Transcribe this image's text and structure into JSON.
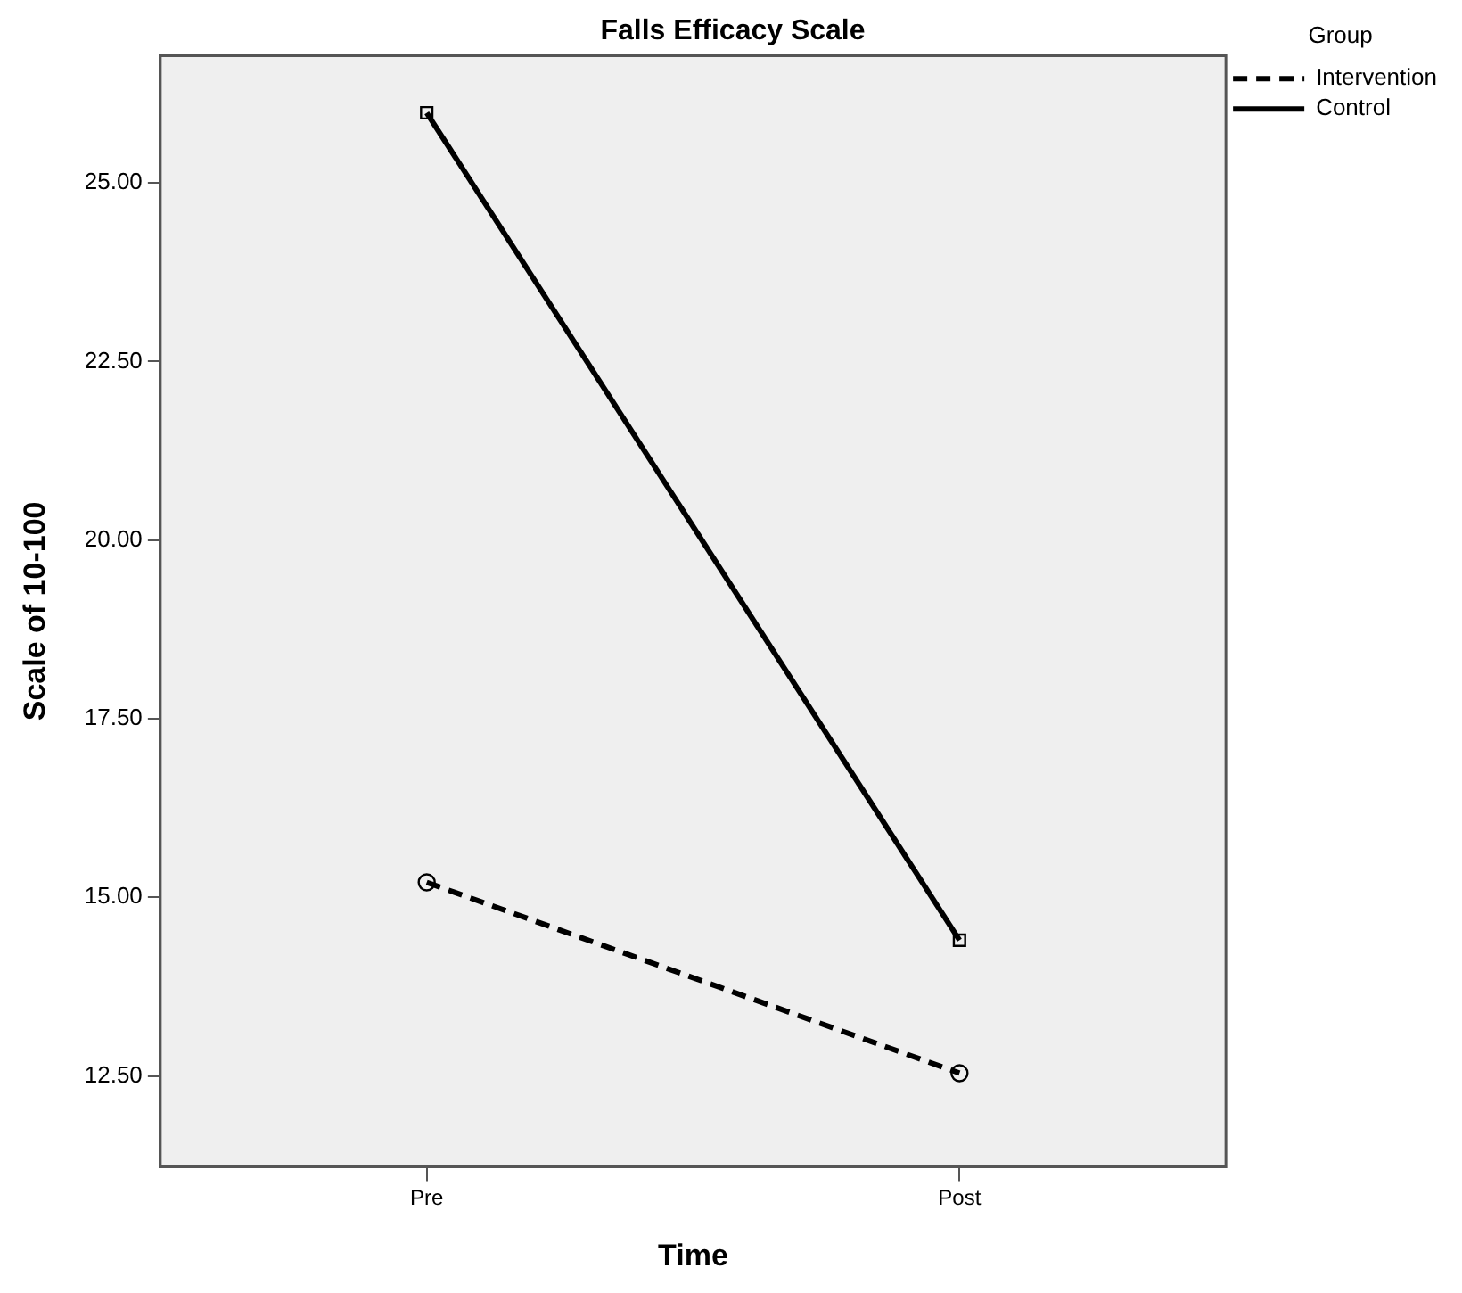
{
  "chart_data": {
    "type": "line",
    "title": "Falls Efficacy Scale",
    "xlabel": "Time",
    "ylabel": "Scale of 10-100",
    "legend_title": "Group",
    "categories": [
      "Pre",
      "Post"
    ],
    "series": [
      {
        "name": "Intervention",
        "color": "#000000",
        "values": [
          15.21,
          12.54
        ],
        "line_style": "dashed",
        "marker": "circle"
      },
      {
        "name": "Control",
        "color": "#000000",
        "values": [
          25.98,
          14.4
        ],
        "line_style": "solid",
        "marker": "square"
      }
    ],
    "ylim": [
      11.23,
      26.78
    ],
    "yticks": [
      {
        "value": 12.5,
        "label": "12.50"
      },
      {
        "value": 15,
        "label": "15.00"
      },
      {
        "value": 17.5,
        "label": "17.50"
      },
      {
        "value": 20,
        "label": "20.00"
      },
      {
        "value": 22.5,
        "label": "22.50"
      },
      {
        "value": 25,
        "label": "25.00"
      }
    ],
    "grid": false,
    "legend": "top right"
  }
}
